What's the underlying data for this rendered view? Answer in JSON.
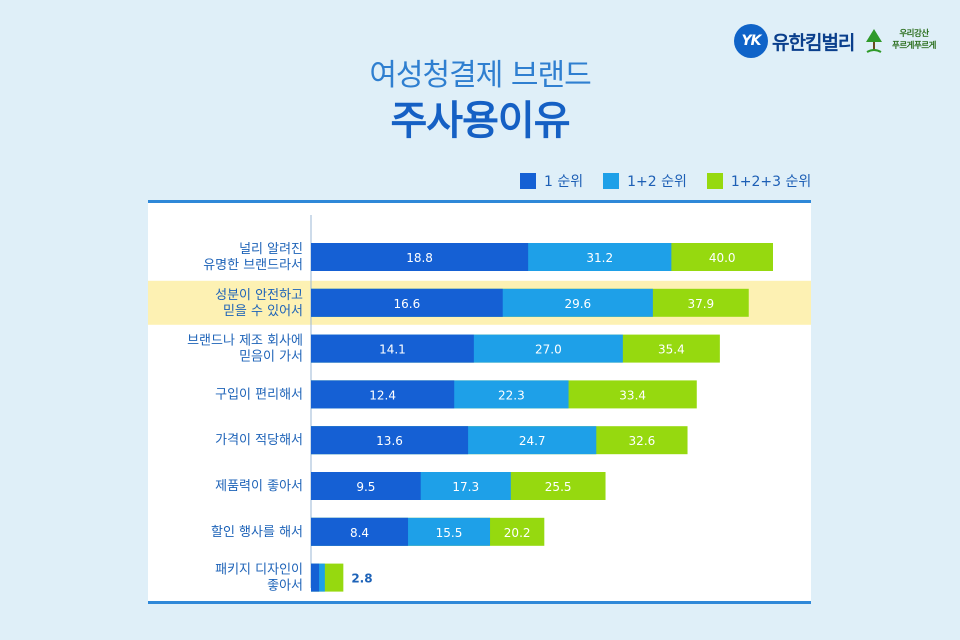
{
  "logo": {
    "mark": "YK",
    "brand": "유한킴벌리",
    "slogan_line1": "우리강산",
    "slogan_line2": "푸르게푸르게"
  },
  "title": {
    "line1": "여성청결제 브랜드",
    "line2": "주사용이유"
  },
  "colors": {
    "rank1": "#1560d4",
    "rank12": "#1ea0e8",
    "rank123": "#96d90f",
    "highlight": "#fdf1b3",
    "text": "#1e63b8"
  },
  "chart_data": {
    "type": "bar",
    "orientation": "horizontal",
    "categories": [
      [
        "널리 알려진",
        "유명한 브랜드라서"
      ],
      [
        "성분이 안전하고",
        "믿을 수 있어서"
      ],
      [
        "브랜드나 제조 회사에",
        "믿음이 가서"
      ],
      [
        "구입이 편리해서"
      ],
      [
        "가격이 적당해서"
      ],
      [
        "제품력이 좋아서"
      ],
      [
        "할인 행사를 해서"
      ],
      [
        "패키지 디자인이",
        "좋아서"
      ]
    ],
    "highlighted_category_index": 1,
    "series": [
      {
        "name": "1 순위",
        "values": [
          18.8,
          16.6,
          14.1,
          12.4,
          13.6,
          9.5,
          8.4,
          null
        ]
      },
      {
        "name": "1+2 순위",
        "values": [
          31.2,
          29.6,
          27.0,
          22.3,
          24.7,
          17.3,
          15.5,
          null
        ]
      },
      {
        "name": "1+2+3 순위",
        "values": [
          40.0,
          37.9,
          35.4,
          33.4,
          32.6,
          25.5,
          20.2,
          2.8
        ]
      }
    ],
    "value_labels": [
      [
        "18.8",
        "31.2",
        "40.0"
      ],
      [
        "16.6",
        "29.6",
        "37.9"
      ],
      [
        "14.1",
        "27.0",
        "35.4"
      ],
      [
        "12.4",
        "22.3",
        "33.4"
      ],
      [
        "13.6",
        "24.7",
        "32.6"
      ],
      [
        "9.5",
        "17.3",
        "25.5"
      ],
      [
        "8.4",
        "15.5",
        "20.2"
      ],
      [
        "",
        "",
        "2.8"
      ]
    ],
    "xlim": [
      0,
      45
    ],
    "grid": false,
    "legend_position": "top-right"
  }
}
